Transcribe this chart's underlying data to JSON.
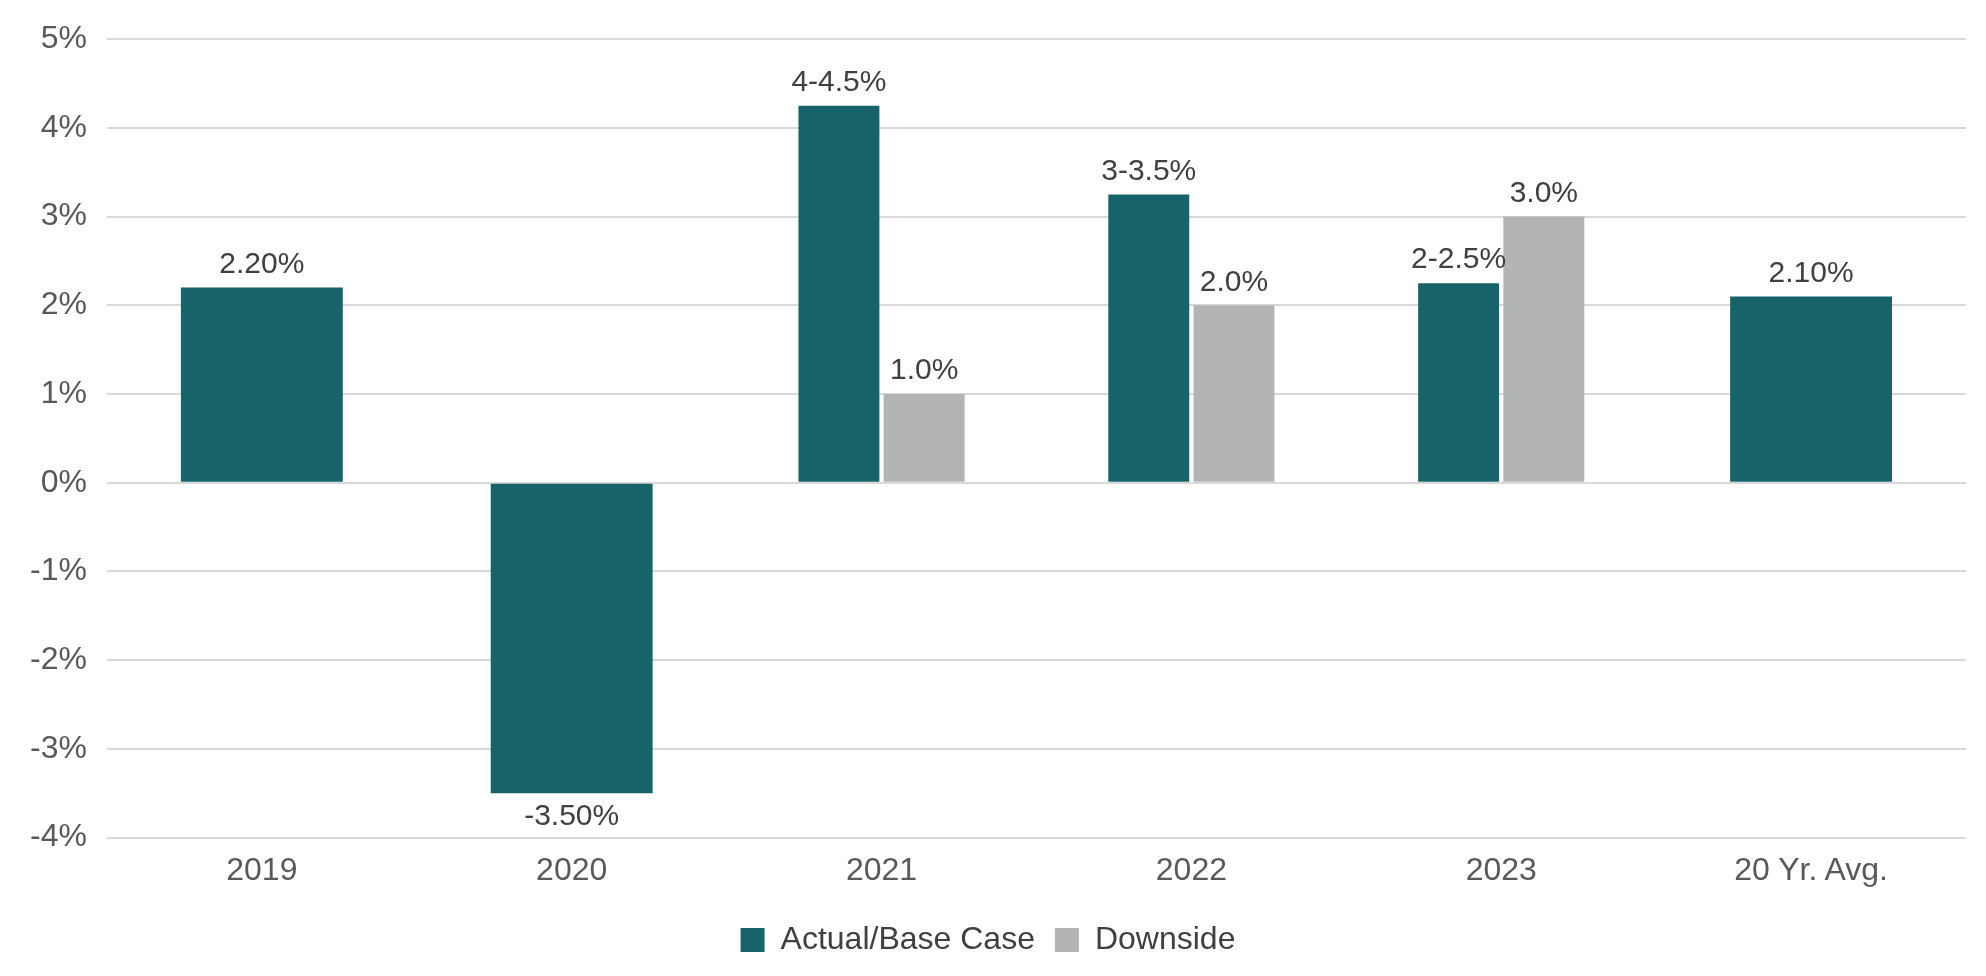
{
  "chart_data": {
    "type": "bar",
    "categories": [
      "2019",
      "2020",
      "2021",
      "2022",
      "2023",
      "20 Yr. Avg."
    ],
    "series": [
      {
        "name": "Actual/Base Case",
        "color": "#17636a",
        "values": [
          2.2,
          -3.5,
          4.25,
          3.25,
          2.25,
          2.1
        ],
        "value_labels": [
          "2.20%",
          "-3.50%",
          "4-4.5%",
          "3-3.5%",
          "2-2.5%",
          "2.10%"
        ]
      },
      {
        "name": "Downside",
        "color": "#b3b4b6",
        "values": [
          null,
          null,
          1.0,
          2.0,
          3.0,
          null
        ],
        "value_labels": [
          null,
          null,
          "1.0%",
          "2.0%",
          "3.0%",
          null
        ]
      }
    ],
    "ylim": [
      -4,
      5
    ],
    "yticks": [
      {
        "value": -4,
        "label": "-4%"
      },
      {
        "value": -3,
        "label": "-3%"
      },
      {
        "value": -2,
        "label": "-2%"
      },
      {
        "value": -1,
        "label": "-1%"
      },
      {
        "value": 0,
        "label": "0%"
      },
      {
        "value": 1,
        "label": "1%"
      },
      {
        "value": 2,
        "label": "2%"
      },
      {
        "value": 3,
        "label": "3%"
      },
      {
        "value": 4,
        "label": "4%"
      },
      {
        "value": 5,
        "label": "5%"
      }
    ],
    "grid": "y",
    "legend": "bottom"
  }
}
